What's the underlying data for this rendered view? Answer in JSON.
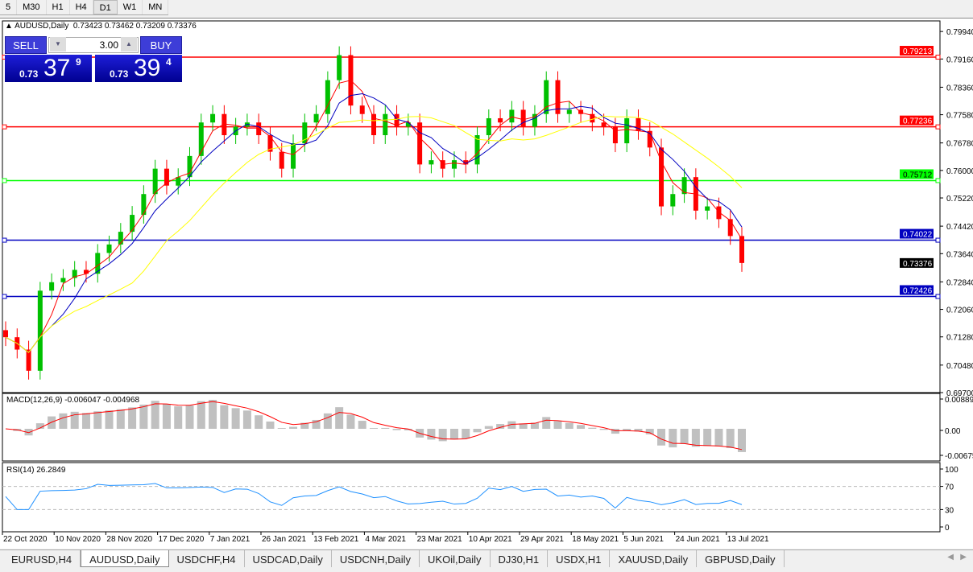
{
  "timeframes": [
    "5",
    "M30",
    "H1",
    "H4",
    "D1",
    "W1",
    "MN"
  ],
  "active_timeframe": "D1",
  "chart": {
    "symbol_title": "AUDUSD,Daily",
    "ohlc": "0.73423 0.73462 0.73209 0.73376"
  },
  "trade_panel": {
    "sell_label": "SELL",
    "buy_label": "BUY",
    "lot": "3.00",
    "sell": {
      "prefix": "0.73",
      "big": "37",
      "sup": "9"
    },
    "buy": {
      "prefix": "0.73",
      "big": "39",
      "sup": "4"
    }
  },
  "colors": {
    "bull": "#00c000",
    "bear": "#ff0000",
    "ma_fast": "#ff0000",
    "ma_mid": "#0000c0",
    "ma_slow": "#ffff00",
    "rsi": "#1e90ff",
    "macd_hist": "#c0c0c0",
    "macd_signal": "#ff0000"
  },
  "chart_data": {
    "type": "candlestick",
    "ylim": [
      0.697,
      0.8024
    ],
    "price_ticks": [
      "0.79940",
      "0.79160",
      "0.78360",
      "0.77580",
      "0.76780",
      "0.76000",
      "0.75220",
      "0.74420",
      "0.73640",
      "0.72840",
      "0.72060",
      "0.71280",
      "0.70480",
      "0.69700"
    ],
    "current_price": "0.73376",
    "hlines": [
      {
        "value": "0.79213",
        "color": "#ff0000"
      },
      {
        "value": "0.77236",
        "color": "#ff0000"
      },
      {
        "value": "0.75712",
        "color": "#00ff00"
      },
      {
        "value": "0.74022",
        "color": "#0000c0"
      },
      {
        "value": "0.72426",
        "color": "#0000c0"
      }
    ],
    "date_ticks": [
      "22 Oct 2020",
      "10 Nov 2020",
      "28 Nov 2020",
      "17 Dec 2020",
      "7 Jan 2021",
      "26 Jan 2021",
      "13 Feb 2021",
      "4 Mar 2021",
      "23 Mar 2021",
      "10 Apr 2021",
      "29 Apr 2021",
      "18 May 2021",
      "5 Jun 2021",
      "24 Jun 2021",
      "13 Jul 2021"
    ],
    "closes": [
      0.7127,
      0.7092,
      0.7032,
      0.7259,
      0.7283,
      0.7295,
      0.7318,
      0.7307,
      0.7366,
      0.739,
      0.7426,
      0.7474,
      0.7533,
      0.7605,
      0.7557,
      0.7581,
      0.7641,
      0.7736,
      0.776,
      0.77,
      0.7724,
      0.7736,
      0.77,
      0.7653,
      0.7605,
      0.7677,
      0.7736,
      0.776,
      0.7856,
      0.7927,
      0.7784,
      0.776,
      0.77,
      0.776,
      0.7724,
      0.7736,
      0.7617,
      0.7629,
      0.7605,
      0.7629,
      0.7617,
      0.77,
      0.7748,
      0.7736,
      0.7772,
      0.7724,
      0.776,
      0.7856,
      0.776,
      0.7772,
      0.776,
      0.7736,
      0.7724,
      0.7677,
      0.7748,
      0.7712,
      0.7665,
      0.7498,
      0.7533,
      0.7581,
      0.7486,
      0.7498,
      0.7462,
      0.7414,
      0.73376
    ],
    "macd": {
      "label": "MACD(12,26,9) -0.006047 -0.004968",
      "ticks": [
        "0.008892",
        "0.00",
        "-0.006758"
      ]
    },
    "rsi": {
      "label": "RSI(14) 26.2849",
      "ticks": [
        "100",
        "70",
        "30",
        "0"
      ]
    }
  },
  "tabs": [
    "EURUSD,H4",
    "AUDUSD,Daily",
    "USDCHF,H4",
    "USDCAD,Daily",
    "USDCNH,Daily",
    "UKOil,Daily",
    "DJ30,H1",
    "USDX,H1",
    "XAUUSD,Daily",
    "GBPUSD,Daily"
  ],
  "active_tab": "AUDUSD,Daily"
}
